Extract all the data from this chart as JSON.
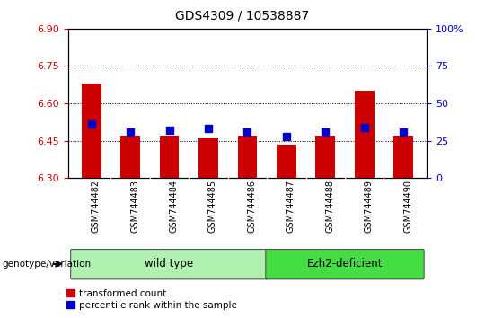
{
  "title": "GDS4309 / 10538887",
  "samples": [
    "GSM744482",
    "GSM744483",
    "GSM744484",
    "GSM744485",
    "GSM744486",
    "GSM744487",
    "GSM744488",
    "GSM744489",
    "GSM744490"
  ],
  "transformed_counts": [
    6.68,
    6.47,
    6.47,
    6.46,
    6.47,
    6.435,
    6.47,
    6.65,
    6.47
  ],
  "percentile_ranks": [
    36,
    31,
    32,
    33,
    31,
    28,
    31,
    34,
    31
  ],
  "ylim": [
    6.3,
    6.9
  ],
  "yticks": [
    6.3,
    6.45,
    6.6,
    6.75,
    6.9
  ],
  "right_yticks": [
    0,
    25,
    50,
    75,
    100
  ],
  "ybase": 6.3,
  "groups": [
    {
      "label": "wild type",
      "start": 0,
      "end": 4,
      "color": "#90ee90"
    },
    {
      "label": "Ezh2-deficient",
      "start": 5,
      "end": 8,
      "color": "#32cd32"
    }
  ],
  "bar_color_red": "#cc0000",
  "bar_color_blue": "#0000cc",
  "bar_width": 0.5,
  "blue_square_size": 35,
  "ytick_color_left": "#cc0000",
  "ytick_color_right": "#0000cc",
  "grid_color": "#000000",
  "background_color": "#ffffff",
  "legend_labels": [
    "transformed count",
    "percentile rank within the sample"
  ],
  "legend_colors": [
    "#cc0000",
    "#0000cc"
  ],
  "genotype_label": "genotype/variation",
  "xlabel_gray": "#c8c8c8",
  "group_light_green": "#b0f0b0",
  "group_dark_green": "#44dd44"
}
